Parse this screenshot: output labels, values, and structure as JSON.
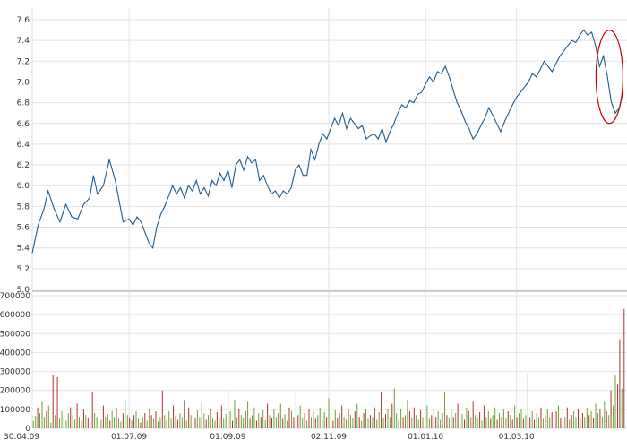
{
  "chart_data": [
    {
      "type": "line",
      "title": "",
      "xlabel": "",
      "ylabel": "",
      "ylim": [
        5.0,
        7.6
      ],
      "grid": true,
      "y_ticks": [
        "5.0",
        "5.2",
        "5.4",
        "5.6",
        "5.8",
        "6.0",
        "6.2",
        "6.4",
        "6.6",
        "6.8",
        "7.0",
        "7.2",
        "7.4",
        "7.6"
      ],
      "x_ticks": [
        "30.04.09",
        "01.07.09",
        "01.09.09",
        "02.11.09",
        "01.01.10",
        "01.03.10"
      ],
      "x_range": [
        0,
        300
      ],
      "x_tick_positions": [
        0,
        49,
        99,
        150,
        199,
        245
      ],
      "series": [
        {
          "color": "#1f5b8c",
          "points": [
            [
              0,
              5.35
            ],
            [
              3,
              5.62
            ],
            [
              6,
              5.78
            ],
            [
              8,
              5.95
            ],
            [
              11,
              5.78
            ],
            [
              14,
              5.65
            ],
            [
              17,
              5.82
            ],
            [
              20,
              5.7
            ],
            [
              23,
              5.68
            ],
            [
              26,
              5.82
            ],
            [
              29,
              5.88
            ],
            [
              31,
              6.1
            ],
            [
              33,
              5.92
            ],
            [
              36,
              6.0
            ],
            [
              39,
              6.25
            ],
            [
              42,
              6.05
            ],
            [
              44,
              5.85
            ],
            [
              46,
              5.65
            ],
            [
              49,
              5.68
            ],
            [
              51,
              5.62
            ],
            [
              53,
              5.7
            ],
            [
              55,
              5.65
            ],
            [
              57,
              5.55
            ],
            [
              59,
              5.45
            ],
            [
              61,
              5.4
            ],
            [
              63,
              5.6
            ],
            [
              65,
              5.72
            ],
            [
              67,
              5.8
            ],
            [
              69,
              5.9
            ],
            [
              71,
              6.0
            ],
            [
              73,
              5.92
            ],
            [
              75,
              5.98
            ],
            [
              77,
              5.88
            ],
            [
              79,
              6.0
            ],
            [
              81,
              5.95
            ],
            [
              83,
              6.05
            ],
            [
              85,
              5.92
            ],
            [
              87,
              5.98
            ],
            [
              89,
              5.9
            ],
            [
              91,
              6.05
            ],
            [
              93,
              6.0
            ],
            [
              95,
              6.12
            ],
            [
              97,
              6.05
            ],
            [
              99,
              6.15
            ],
            [
              101,
              5.98
            ],
            [
              103,
              6.2
            ],
            [
              105,
              6.25
            ],
            [
              107,
              6.15
            ],
            [
              109,
              6.28
            ],
            [
              111,
              6.22
            ],
            [
              113,
              6.25
            ],
            [
              115,
              6.05
            ],
            [
              117,
              6.1
            ],
            [
              119,
              6.0
            ],
            [
              121,
              5.92
            ],
            [
              123,
              5.95
            ],
            [
              125,
              5.88
            ],
            [
              127,
              5.95
            ],
            [
              129,
              5.92
            ],
            [
              131,
              5.98
            ],
            [
              133,
              6.15
            ],
            [
              135,
              6.2
            ],
            [
              137,
              6.1
            ],
            [
              139,
              6.1
            ],
            [
              141,
              6.35
            ],
            [
              143,
              6.25
            ],
            [
              145,
              6.4
            ],
            [
              147,
              6.5
            ],
            [
              149,
              6.45
            ],
            [
              151,
              6.55
            ],
            [
              153,
              6.65
            ],
            [
              155,
              6.58
            ],
            [
              157,
              6.7
            ],
            [
              159,
              6.55
            ],
            [
              161,
              6.65
            ],
            [
              163,
              6.6
            ],
            [
              165,
              6.55
            ],
            [
              167,
              6.58
            ],
            [
              169,
              6.45
            ],
            [
              171,
              6.48
            ],
            [
              173,
              6.5
            ],
            [
              175,
              6.45
            ],
            [
              177,
              6.55
            ],
            [
              179,
              6.42
            ],
            [
              181,
              6.52
            ],
            [
              183,
              6.6
            ],
            [
              185,
              6.7
            ],
            [
              187,
              6.78
            ],
            [
              189,
              6.75
            ],
            [
              191,
              6.82
            ],
            [
              193,
              6.8
            ],
            [
              195,
              6.88
            ],
            [
              197,
              6.9
            ],
            [
              199,
              6.98
            ],
            [
              201,
              7.05
            ],
            [
              203,
              7.0
            ],
            [
              205,
              7.1
            ],
            [
              207,
              7.08
            ],
            [
              209,
              7.15
            ],
            [
              211,
              7.05
            ],
            [
              213,
              6.92
            ],
            [
              215,
              6.8
            ],
            [
              217,
              6.72
            ],
            [
              219,
              6.62
            ],
            [
              221,
              6.55
            ],
            [
              223,
              6.45
            ],
            [
              225,
              6.5
            ],
            [
              227,
              6.58
            ],
            [
              229,
              6.65
            ],
            [
              231,
              6.75
            ],
            [
              233,
              6.68
            ],
            [
              235,
              6.6
            ],
            [
              237,
              6.52
            ],
            [
              239,
              6.62
            ],
            [
              241,
              6.7
            ],
            [
              243,
              6.78
            ],
            [
              245,
              6.85
            ],
            [
              247,
              6.9
            ],
            [
              249,
              6.95
            ],
            [
              251,
              7.0
            ],
            [
              253,
              7.08
            ],
            [
              255,
              7.05
            ],
            [
              257,
              7.12
            ],
            [
              259,
              7.2
            ],
            [
              261,
              7.15
            ],
            [
              263,
              7.1
            ],
            [
              265,
              7.18
            ],
            [
              267,
              7.25
            ],
            [
              269,
              7.3
            ],
            [
              271,
              7.35
            ],
            [
              273,
              7.4
            ],
            [
              275,
              7.38
            ],
            [
              277,
              7.45
            ],
            [
              279,
              7.5
            ],
            [
              281,
              7.45
            ],
            [
              283,
              7.48
            ],
            [
              285,
              7.35
            ],
            [
              287,
              7.15
            ],
            [
              289,
              7.25
            ],
            [
              291,
              7.05
            ],
            [
              293,
              6.8
            ],
            [
              295,
              6.7
            ],
            [
              297,
              6.75
            ],
            [
              299,
              6.9
            ]
          ]
        }
      ],
      "annotation": {
        "shape": "ellipse",
        "color": "#cc0000",
        "x_center": 292,
        "y_center": 7.05
      }
    },
    {
      "type": "bar",
      "title": "",
      "xlabel": "",
      "ylabel": "",
      "ylim": [
        0,
        700000
      ],
      "grid": true,
      "y_ticks": [
        "0",
        "100000",
        "200000",
        "300000",
        "400000",
        "500000",
        "600000",
        "700000"
      ],
      "x_ticks": [
        "30.04.09",
        "01.07.09",
        "01.09.09",
        "02.11.09",
        "01.01.10",
        "01.03.10"
      ],
      "x_range": [
        0,
        300
      ],
      "x_tick_positions": [
        0,
        49,
        99,
        150,
        199,
        245
      ],
      "colors": {
        "up": "#6aa22a",
        "down": "#b03030"
      },
      "values": [
        40000,
        65000,
        110000,
        80000,
        140000,
        60000,
        90000,
        120000,
        30000,
        280000,
        70000,
        270000,
        50000,
        90000,
        60000,
        40000,
        80000,
        110000,
        70000,
        45000,
        130000,
        60000,
        40000,
        100000,
        70000,
        55000,
        30000,
        190000,
        80000,
        60000,
        100000,
        45000,
        120000,
        60000,
        75000,
        40000,
        90000,
        60000,
        110000,
        50000,
        35000,
        80000,
        150000,
        70000,
        55000,
        40000,
        70000,
        90000,
        50000,
        30000,
        60000,
        80000,
        40000,
        100000,
        70000,
        50000,
        90000,
        35000,
        60000,
        200000,
        70000,
        40000,
        90000,
        50000,
        120000,
        65000,
        45000,
        80000,
        60000,
        150000,
        40000,
        110000,
        70000,
        190000,
        55000,
        95000,
        60000,
        140000,
        80000,
        45000,
        70000,
        100000,
        55000,
        40000,
        85000,
        60000,
        120000,
        50000,
        75000,
        200000,
        90000,
        40000,
        150000,
        60000,
        100000,
        70000,
        55000,
        90000,
        140000,
        50000,
        70000,
        110000,
        40000,
        80000,
        60000,
        95000,
        45000,
        130000,
        70000,
        55000,
        100000,
        60000,
        80000,
        130000,
        50000,
        75000,
        40000,
        110000,
        90000,
        60000,
        190000,
        70000,
        120000,
        55000,
        80000,
        40000,
        100000,
        60000,
        90000,
        50000,
        70000,
        110000,
        45000,
        85000,
        60000,
        160000,
        70000,
        40000,
        95000,
        55000,
        80000,
        120000,
        60000,
        45000,
        100000,
        70000,
        55000,
        90000,
        130000,
        60000,
        40000,
        80000,
        100000,
        50000,
        70000,
        60000,
        110000,
        45000,
        85000,
        190000,
        55000,
        75000,
        100000,
        60000,
        130000,
        210000,
        80000,
        45000,
        100000,
        60000,
        70000,
        150000,
        90000,
        55000,
        110000,
        70000,
        45000,
        95000,
        60000,
        80000,
        120000,
        50000,
        70000,
        100000,
        60000,
        90000,
        45000,
        80000,
        190000,
        70000,
        55000,
        100000,
        60000,
        80000,
        130000,
        50000,
        75000,
        45000,
        110000,
        90000,
        60000,
        140000,
        70000,
        55000,
        85000,
        40000,
        120000,
        60000,
        90000,
        50000,
        70000,
        110000,
        45000,
        80000,
        60000,
        100000,
        55000,
        90000,
        70000,
        45000,
        120000,
        60000,
        80000,
        100000,
        50000,
        70000,
        290000,
        60000,
        90000,
        45000,
        80000,
        60000,
        110000,
        50000,
        70000,
        100000,
        60000,
        85000,
        45000,
        90000,
        120000,
        55000,
        80000,
        60000,
        110000,
        45000,
        70000,
        90000,
        60000,
        100000,
        50000,
        80000,
        60000,
        110000,
        70000,
        90000,
        55000,
        130000,
        80000,
        100000,
        60000,
        140000,
        90000,
        70000,
        200000,
        120000,
        280000,
        230000,
        470000,
        210000,
        630000
      ],
      "directions": [
        "up",
        "up",
        "down",
        "up",
        "up",
        "up",
        "down",
        "up",
        "up",
        "down",
        "up",
        "down",
        "up",
        "up",
        "down",
        "up",
        "up",
        "down",
        "up",
        "up",
        "down",
        "up",
        "up",
        "down",
        "up",
        "down",
        "up",
        "down",
        "up",
        "up",
        "down",
        "up",
        "down",
        "up",
        "up",
        "down",
        "up",
        "up",
        "down",
        "up",
        "up",
        "down",
        "up",
        "up",
        "down",
        "up",
        "down",
        "up",
        "up",
        "down",
        "up",
        "down",
        "up",
        "up",
        "down",
        "up",
        "down",
        "up",
        "up",
        "down",
        "up",
        "down",
        "up",
        "up",
        "down",
        "up",
        "down",
        "up",
        "up",
        "down",
        "up",
        "down",
        "up",
        "up",
        "down",
        "up",
        "up",
        "down",
        "up",
        "down",
        "up",
        "down",
        "up",
        "up",
        "down",
        "up",
        "down",
        "up",
        "up",
        "down",
        "up",
        "down",
        "up",
        "up",
        "down",
        "up",
        "up",
        "down",
        "up",
        "down",
        "up",
        "up",
        "down",
        "up",
        "down",
        "up",
        "up",
        "down",
        "up",
        "down",
        "up",
        "up",
        "down",
        "up",
        "down",
        "up",
        "up",
        "down",
        "up",
        "down",
        "up",
        "down",
        "up",
        "up",
        "down",
        "up",
        "down",
        "up",
        "up",
        "down",
        "up",
        "up",
        "down",
        "up",
        "down",
        "up",
        "up",
        "down",
        "up",
        "down",
        "up",
        "down",
        "up",
        "up",
        "down",
        "up",
        "up",
        "down",
        "up",
        "down",
        "up",
        "down",
        "up",
        "up",
        "down",
        "up",
        "down",
        "up",
        "up",
        "down",
        "up",
        "down",
        "up",
        "up",
        "down",
        "up",
        "up",
        "down",
        "up",
        "down",
        "up",
        "up",
        "down",
        "up",
        "down",
        "up",
        "up",
        "down",
        "up",
        "down",
        "up",
        "up",
        "down",
        "up",
        "down",
        "up",
        "up",
        "down",
        "up",
        "down",
        "up",
        "up",
        "down",
        "up",
        "down",
        "up",
        "up",
        "down",
        "up",
        "down",
        "up",
        "down",
        "up",
        "up",
        "down",
        "up",
        "down",
        "up",
        "up",
        "down",
        "up",
        "up",
        "down",
        "up",
        "down",
        "up",
        "up",
        "down",
        "up",
        "down",
        "up",
        "down",
        "up",
        "up",
        "down",
        "up",
        "up",
        "down",
        "up",
        "down",
        "up",
        "up",
        "down",
        "up",
        "down",
        "up",
        "up",
        "down",
        "up",
        "down",
        "up",
        "down",
        "up",
        "up",
        "down",
        "up",
        "down",
        "up",
        "up",
        "down",
        "up",
        "down",
        "up",
        "up",
        "down",
        "up",
        "down",
        "up",
        "up",
        "down",
        "up",
        "up",
        "down",
        "up",
        "down",
        "up",
        "up",
        "down",
        "down",
        "up",
        "down"
      ]
    }
  ]
}
